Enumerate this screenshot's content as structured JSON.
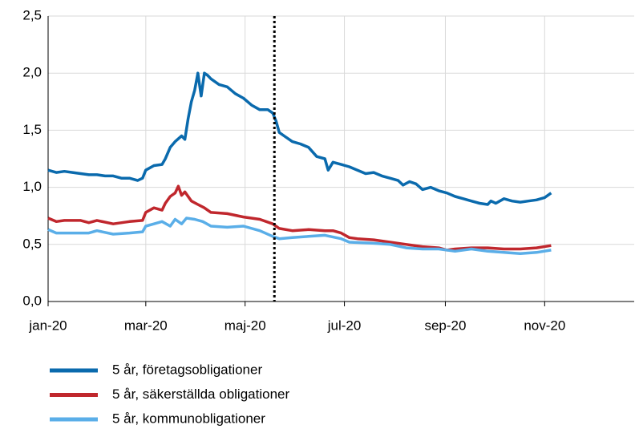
{
  "chart_data": {
    "type": "line",
    "xlim": [
      0,
      360
    ],
    "ylim": [
      0,
      2.5
    ],
    "xticks": [
      {
        "value": 0,
        "label": "jan-20"
      },
      {
        "value": 60,
        "label": "mar-20"
      },
      {
        "value": 121,
        "label": "maj-20"
      },
      {
        "value": 182,
        "label": "jul-20"
      },
      {
        "value": 244,
        "label": "sep-20"
      },
      {
        "value": 305,
        "label": "nov-20"
      }
    ],
    "yticks": [
      {
        "value": 0,
        "label": "0,0"
      },
      {
        "value": 0.5,
        "label": "0,5"
      },
      {
        "value": 1,
        "label": "1,0"
      },
      {
        "value": 1.5,
        "label": "1,5"
      },
      {
        "value": 2,
        "label": "2,0"
      },
      {
        "value": 2.5,
        "label": "2,5"
      }
    ],
    "grid": true,
    "vline_x": 139,
    "series": [
      {
        "name": "5 år, företagsobligationer",
        "color": "#0a6aad",
        "x": [
          0,
          5,
          10,
          15,
          20,
          25,
          30,
          35,
          40,
          45,
          50,
          55,
          58,
          60,
          65,
          70,
          72,
          75,
          78,
          82,
          84,
          86,
          88,
          90,
          92,
          94,
          96,
          98,
          100,
          105,
          110,
          115,
          120,
          125,
          130,
          135,
          138,
          140,
          142,
          145,
          150,
          155,
          160,
          165,
          170,
          172,
          175,
          180,
          185,
          190,
          195,
          200,
          205,
          210,
          215,
          218,
          222,
          226,
          230,
          235,
          240,
          245,
          250,
          255,
          260,
          265,
          270,
          272,
          275,
          280,
          285,
          290,
          295,
          300,
          305,
          309
        ],
        "values": [
          1.15,
          1.13,
          1.14,
          1.13,
          1.12,
          1.11,
          1.11,
          1.1,
          1.1,
          1.08,
          1.08,
          1.06,
          1.08,
          1.15,
          1.19,
          1.2,
          1.25,
          1.35,
          1.4,
          1.45,
          1.42,
          1.6,
          1.75,
          1.85,
          2.0,
          1.8,
          2.0,
          1.98,
          1.95,
          1.9,
          1.88,
          1.82,
          1.78,
          1.72,
          1.68,
          1.68,
          1.65,
          1.58,
          1.48,
          1.45,
          1.4,
          1.38,
          1.35,
          1.27,
          1.25,
          1.15,
          1.22,
          1.2,
          1.18,
          1.15,
          1.12,
          1.13,
          1.1,
          1.08,
          1.06,
          1.02,
          1.05,
          1.03,
          0.98,
          1.0,
          0.97,
          0.95,
          0.92,
          0.9,
          0.88,
          0.86,
          0.85,
          0.88,
          0.86,
          0.9,
          0.88,
          0.87,
          0.88,
          0.89,
          0.91,
          0.95
        ]
      },
      {
        "name": "5 år, säkerställda obligationer",
        "color": "#c0272d",
        "x": [
          0,
          5,
          10,
          20,
          25,
          30,
          40,
          50,
          58,
          60,
          65,
          70,
          72,
          75,
          78,
          80,
          82,
          84,
          88,
          92,
          96,
          100,
          110,
          120,
          130,
          138,
          142,
          150,
          160,
          170,
          175,
          180,
          185,
          190,
          200,
          210,
          220,
          230,
          240,
          245,
          250,
          260,
          270,
          280,
          290,
          300,
          309
        ],
        "values": [
          0.73,
          0.7,
          0.71,
          0.71,
          0.69,
          0.71,
          0.68,
          0.7,
          0.71,
          0.78,
          0.82,
          0.8,
          0.86,
          0.92,
          0.95,
          1.01,
          0.93,
          0.96,
          0.88,
          0.85,
          0.82,
          0.78,
          0.77,
          0.74,
          0.72,
          0.68,
          0.64,
          0.62,
          0.63,
          0.62,
          0.62,
          0.6,
          0.56,
          0.55,
          0.54,
          0.52,
          0.5,
          0.48,
          0.47,
          0.45,
          0.46,
          0.47,
          0.47,
          0.46,
          0.46,
          0.47,
          0.49
        ]
      },
      {
        "name": "5 år, kommunobligationer",
        "color": "#5aaee8",
        "x": [
          0,
          5,
          15,
          25,
          30,
          40,
          50,
          58,
          60,
          65,
          70,
          75,
          78,
          82,
          85,
          90,
          95,
          100,
          110,
          120,
          130,
          138,
          142,
          150,
          160,
          170,
          180,
          185,
          200,
          210,
          220,
          230,
          240,
          250,
          260,
          270,
          280,
          290,
          300,
          309
        ],
        "values": [
          0.63,
          0.6,
          0.6,
          0.6,
          0.62,
          0.59,
          0.6,
          0.61,
          0.66,
          0.68,
          0.7,
          0.66,
          0.72,
          0.68,
          0.73,
          0.72,
          0.7,
          0.66,
          0.65,
          0.66,
          0.62,
          0.57,
          0.55,
          0.56,
          0.57,
          0.58,
          0.55,
          0.52,
          0.51,
          0.5,
          0.47,
          0.46,
          0.46,
          0.44,
          0.46,
          0.44,
          0.43,
          0.42,
          0.43,
          0.45
        ]
      }
    ]
  }
}
